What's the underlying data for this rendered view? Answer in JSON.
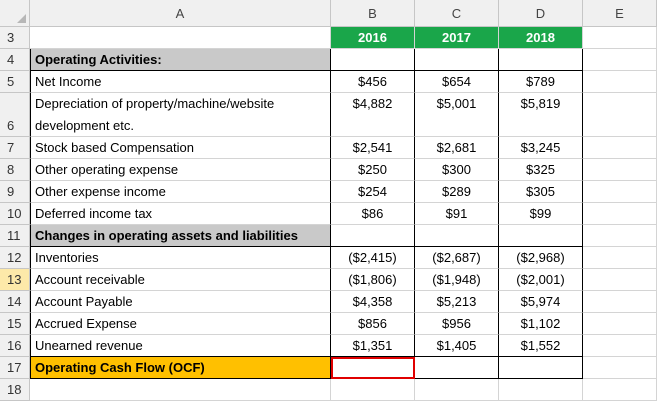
{
  "columns": [
    "A",
    "B",
    "C",
    "D",
    "E"
  ],
  "year_headers": [
    "2016",
    "2017",
    "2018"
  ],
  "rows": [
    {
      "num": "3",
      "label": "",
      "vals": [
        "2016",
        "2017",
        "2018"
      ],
      "type": "years"
    },
    {
      "num": "4",
      "label": "Operating Activities:",
      "vals": [
        "",
        "",
        ""
      ],
      "type": "section"
    },
    {
      "num": "5",
      "label": "Net Income",
      "vals": [
        "$456",
        "$654",
        "$789"
      ],
      "type": "data"
    },
    {
      "num": "6",
      "label": "Depreciation of property/machine/website",
      "label2": "development etc.",
      "vals": [
        "$4,882",
        "$5,001",
        "$5,819"
      ],
      "type": "tall"
    },
    {
      "num": "7",
      "label": "Stock based Compensation",
      "vals": [
        "$2,541",
        "$2,681",
        "$3,245"
      ],
      "type": "data"
    },
    {
      "num": "8",
      "label": "Other operating expense",
      "vals": [
        "$250",
        "$300",
        "$325"
      ],
      "type": "data"
    },
    {
      "num": "9",
      "label": "Other expense income",
      "vals": [
        "$254",
        "$289",
        "$305"
      ],
      "type": "data"
    },
    {
      "num": "10",
      "label": "Deferred income tax",
      "vals": [
        "$86",
        "$91",
        "$99"
      ],
      "type": "data"
    },
    {
      "num": "11",
      "label": "Changes in operating assets and liabilities",
      "vals": [
        "",
        "",
        ""
      ],
      "type": "section"
    },
    {
      "num": "12",
      "label": "Inventories",
      "vals": [
        "($2,415)",
        "($2,687)",
        "($2,968)"
      ],
      "type": "data"
    },
    {
      "num": "13",
      "label": "Account receivable",
      "vals": [
        "($1,806)",
        "($1,948)",
        "($2,001)"
      ],
      "type": "data",
      "selected": true
    },
    {
      "num": "14",
      "label": "Account Payable",
      "vals": [
        "$4,358",
        "$5,213",
        "$5,974"
      ],
      "type": "data"
    },
    {
      "num": "15",
      "label": "Accrued Expense",
      "vals": [
        "$856",
        "$956",
        "$1,102"
      ],
      "type": "data"
    },
    {
      "num": "16",
      "label": "Unearned revenue",
      "vals": [
        "$1,351",
        "$1,405",
        "$1,552"
      ],
      "type": "data"
    },
    {
      "num": "17",
      "label": "Operating Cash Flow (OCF)",
      "vals": [
        "",
        "",
        ""
      ],
      "type": "total"
    },
    {
      "num": "18",
      "label": "",
      "vals": [
        "",
        "",
        ""
      ],
      "type": "empty"
    }
  ],
  "colors": {
    "header_green": "#1aa64a",
    "section_gray": "#c9c9c9",
    "total_orange": "#ffc000",
    "active_cell_border": "#e00000"
  }
}
